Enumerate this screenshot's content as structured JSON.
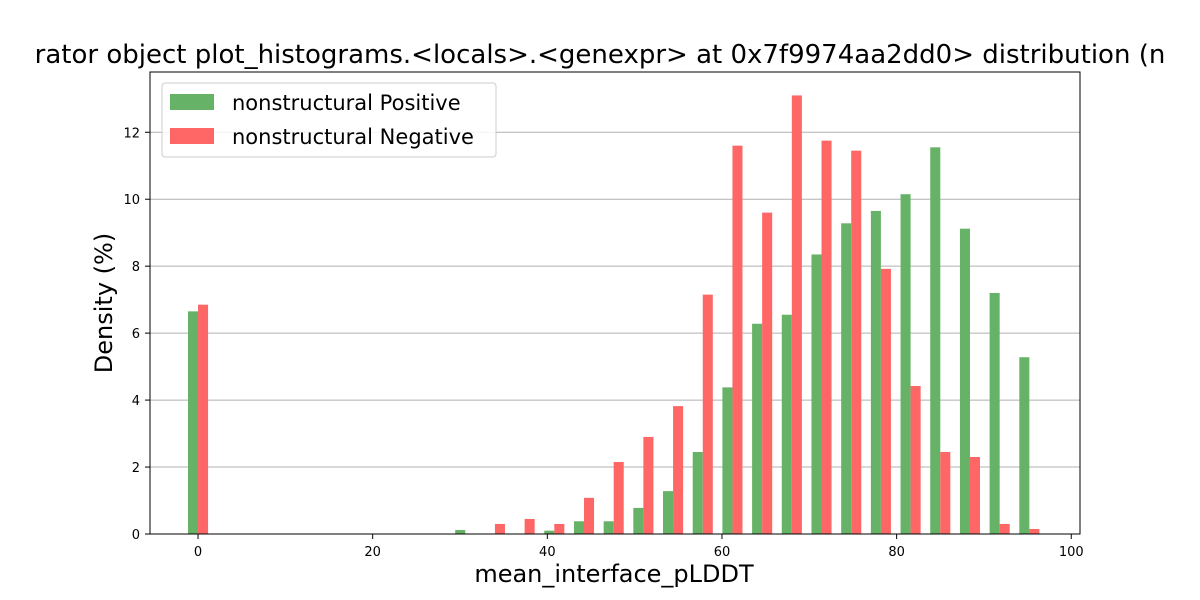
{
  "chart_data": {
    "type": "bar",
    "title": "rator object plot_histograms.<locals>.<genexpr> at 0x7f9974aa2dd0> distribution (n",
    "xlabel": "mean_interface_pLDDT",
    "ylabel": "Density (%)",
    "xlim": [
      -5.5,
      101
    ],
    "ylim": [
      0,
      13.8
    ],
    "xticks": [
      0,
      20,
      40,
      60,
      80,
      100
    ],
    "yticks": [
      0,
      2,
      4,
      6,
      8,
      10,
      12
    ],
    "grid": "y",
    "legend_position": "top-left",
    "bin_centers": [
      0,
      30.6,
      34,
      37.4,
      40.8,
      44.2,
      47.6,
      51,
      54.4,
      57.8,
      61.2,
      64.6,
      68,
      71.4,
      74.8,
      78.2,
      81.6,
      85,
      88.4,
      91.8,
      95.2
    ],
    "series": [
      {
        "name": "nonstructural Positive",
        "color": "#66b266",
        "values": [
          6.65,
          0.12,
          0,
          0,
          0.1,
          0.38,
          0.38,
          0.78,
          1.28,
          2.45,
          4.38,
          6.28,
          6.55,
          8.35,
          9.28,
          9.65,
          10.15,
          11.55,
          9.12,
          7.2,
          5.28
        ]
      },
      {
        "name": "nonstructural Negative",
        "color": "#ff6666",
        "values": [
          6.85,
          0,
          0.3,
          0.45,
          0.3,
          1.08,
          2.15,
          2.9,
          3.82,
          7.15,
          11.6,
          9.6,
          13.1,
          11.75,
          11.45,
          7.92,
          4.42,
          2.45,
          2.3,
          0.3,
          0.15
        ]
      }
    ]
  }
}
